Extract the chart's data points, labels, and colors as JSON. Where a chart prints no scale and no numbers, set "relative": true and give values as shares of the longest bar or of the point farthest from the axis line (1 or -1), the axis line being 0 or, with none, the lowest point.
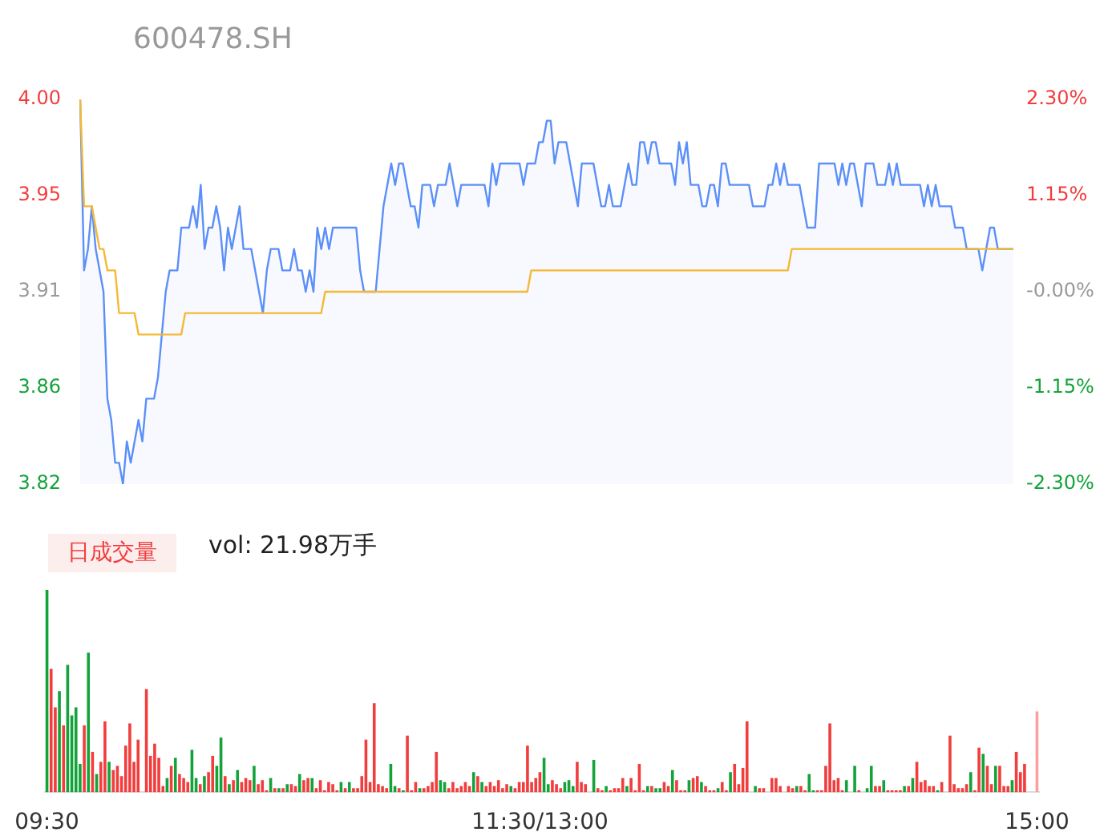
{
  "chart_data": [
    {
      "type": "area",
      "title": "600478.SH",
      "categories": [
        null,
        null,
        null,
        null,
        null,
        null,
        null,
        null,
        null,
        null,
        null,
        null,
        null,
        null,
        null,
        null,
        null,
        null,
        null,
        null,
        null,
        null,
        null,
        null,
        null,
        null,
        null,
        null,
        null,
        null,
        null,
        null,
        null,
        null,
        null,
        null,
        null,
        null,
        null,
        null,
        null,
        null,
        null,
        null,
        null,
        null,
        null,
        null,
        null,
        null,
        null,
        null,
        null,
        null,
        null,
        null,
        null,
        null,
        null,
        null,
        null,
        null,
        null,
        null,
        null,
        null,
        null,
        null,
        null,
        null,
        null,
        null,
        null,
        null,
        null,
        null,
        null,
        null,
        null,
        null,
        null,
        null,
        null,
        null,
        null,
        null,
        null,
        null,
        null,
        null,
        null,
        null,
        null,
        null,
        null,
        null,
        null,
        null,
        null,
        null,
        null,
        null,
        null,
        null,
        null,
        null,
        null,
        null,
        null,
        null,
        null,
        null,
        null,
        null,
        null,
        null,
        null,
        null,
        null,
        null,
        null,
        null,
        null,
        null,
        null,
        null,
        null,
        null,
        null,
        null,
        null,
        null,
        null,
        null,
        null,
        null,
        null,
        null,
        null,
        null,
        null,
        null,
        null,
        null,
        null,
        null,
        null,
        null,
        null,
        null,
        null,
        null,
        null,
        null,
        null,
        null,
        null,
        null,
        null,
        null,
        null,
        null,
        null,
        null,
        null,
        null,
        null,
        null,
        null,
        null,
        null,
        null,
        null,
        null,
        null,
        null,
        null,
        null,
        null,
        null,
        null,
        null,
        null,
        null,
        null,
        null,
        null,
        null,
        null,
        null,
        null,
        null,
        null,
        null,
        null,
        null,
        null,
        null,
        null,
        null,
        null,
        null,
        null,
        null,
        null,
        null,
        null,
        null,
        null,
        null,
        null,
        null,
        null,
        null,
        null,
        null,
        null,
        null,
        null,
        null,
        null,
        null,
        null,
        null,
        null,
        null,
        null,
        null,
        null,
        null,
        null,
        null,
        null,
        null,
        null,
        null,
        null,
        null,
        null,
        null,
        null
      ],
      "ylim": [
        3.82,
        4.0
      ],
      "yticks": [
        {
          "value": 4.0,
          "label": "4.00"
        },
        {
          "value": 3.955,
          "label": "3.95"
        },
        {
          "value": 3.91,
          "label": "3.91"
        },
        {
          "value": 3.865,
          "label": "3.86"
        },
        {
          "value": 3.82,
          "label": "3.82"
        }
      ],
      "y2lim": [
        -2.3,
        2.3
      ],
      "y2ticks": [
        {
          "value": 2.3,
          "label": "2.30%"
        },
        {
          "value": 1.15,
          "label": "1.15%"
        },
        {
          "value": 0,
          "label": "-0.00%"
        },
        {
          "value": -1.15,
          "label": "-1.15%"
        },
        {
          "value": -2.3,
          "label": "-2.30%"
        }
      ],
      "tick_labels": "y",
      "series": [
        {
          "type": "area",
          "color": "#5b8ff9",
          "values": [
            4.0,
            3.92,
            3.93,
            3.95,
            3.93,
            3.92,
            3.91,
            3.86,
            3.85,
            3.83,
            3.83,
            3.82,
            3.84,
            3.83,
            3.84,
            3.85,
            3.84,
            3.86,
            3.86,
            3.86,
            3.87,
            3.89,
            3.91,
            3.92,
            3.92,
            3.92,
            3.94,
            3.94,
            3.94,
            3.95,
            3.94,
            3.96,
            3.93,
            3.94,
            3.94,
            3.95,
            3.94,
            3.92,
            3.94,
            3.93,
            3.94,
            3.95,
            3.93,
            3.93,
            3.93,
            3.92,
            3.91,
            3.9,
            3.92,
            3.93,
            3.93,
            3.93,
            3.92,
            3.92,
            3.92,
            3.93,
            3.92,
            3.92,
            3.91,
            3.92,
            3.91,
            3.94,
            3.93,
            3.94,
            3.93,
            3.94,
            3.94,
            3.94,
            3.94,
            3.94,
            3.94,
            3.94,
            3.92,
            3.91,
            3.91,
            3.91,
            3.91,
            3.93,
            3.95,
            3.96,
            3.97,
            3.96,
            3.97,
            3.97,
            3.96,
            3.95,
            3.95,
            3.94,
            3.96,
            3.96,
            3.96,
            3.95,
            3.96,
            3.96,
            3.96,
            3.97,
            3.96,
            3.95,
            3.96,
            3.96,
            3.96,
            3.96,
            3.96,
            3.96,
            3.96,
            3.95,
            3.97,
            3.96,
            3.97,
            3.97,
            3.97,
            3.97,
            3.97,
            3.97,
            3.96,
            3.97,
            3.97,
            3.97,
            3.98,
            3.98,
            3.99,
            3.99,
            3.97,
            3.98,
            3.98,
            3.98,
            3.97,
            3.96,
            3.95,
            3.97,
            3.97,
            3.97,
            3.97,
            3.96,
            3.95,
            3.95,
            3.96,
            3.95,
            3.95,
            3.95,
            3.96,
            3.97,
            3.96,
            3.96,
            3.98,
            3.98,
            3.97,
            3.98,
            3.98,
            3.97,
            3.97,
            3.97,
            3.97,
            3.96,
            3.98,
            3.97,
            3.98,
            3.96,
            3.96,
            3.96,
            3.95,
            3.95,
            3.96,
            3.96,
            3.95,
            3.97,
            3.97,
            3.96,
            3.96,
            3.96,
            3.96,
            3.96,
            3.96,
            3.95,
            3.95,
            3.95,
            3.95,
            3.96,
            3.96,
            3.97,
            3.96,
            3.97,
            3.96,
            3.96,
            3.96,
            3.96,
            3.95,
            3.94,
            3.94,
            3.94,
            3.97,
            3.97,
            3.97,
            3.97,
            3.97,
            3.96,
            3.97,
            3.96,
            3.97,
            3.97,
            3.96,
            3.95,
            3.97,
            3.97,
            3.97,
            3.96,
            3.96,
            3.96,
            3.97,
            3.96,
            3.97,
            3.96,
            3.96,
            3.96,
            3.96,
            3.96,
            3.96,
            3.95,
            3.96,
            3.95,
            3.96,
            3.95,
            3.95,
            3.95,
            3.95,
            3.94,
            3.94,
            3.94,
            3.93,
            3.93,
            3.93,
            3.93,
            3.92,
            3.93,
            3.94,
            3.94,
            3.93,
            3.93,
            3.93,
            3.93,
            3.93
          ]
        },
        {
          "type": "line",
          "color": "#f5b935",
          "values": [
            4.0,
            3.95,
            3.95,
            3.95,
            3.94,
            3.93,
            3.93,
            3.92,
            3.92,
            3.92,
            3.9,
            3.9,
            3.9,
            3.9,
            3.9,
            3.89,
            3.89,
            3.89,
            3.89,
            3.89,
            3.89,
            3.89,
            3.89,
            3.89,
            3.89,
            3.89,
            3.89,
            3.9,
            3.9,
            3.9,
            3.9,
            3.9,
            3.9,
            3.9,
            3.9,
            3.9,
            3.9,
            3.9,
            3.9,
            3.9,
            3.9,
            3.9,
            3.9,
            3.9,
            3.9,
            3.9,
            3.9,
            3.9,
            3.9,
            3.9,
            3.9,
            3.9,
            3.9,
            3.9,
            3.9,
            3.9,
            3.9,
            3.9,
            3.9,
            3.9,
            3.9,
            3.9,
            3.9,
            3.91,
            3.91,
            3.91,
            3.91,
            3.91,
            3.91,
            3.91,
            3.91,
            3.91,
            3.91,
            3.91,
            3.91,
            3.91,
            3.91,
            3.91,
            3.91,
            3.91,
            3.91,
            3.91,
            3.91,
            3.91,
            3.91,
            3.91,
            3.91,
            3.91,
            3.91,
            3.91,
            3.91,
            3.91,
            3.91,
            3.91,
            3.91,
            3.91,
            3.91,
            3.91,
            3.91,
            3.91,
            3.91,
            3.91,
            3.91,
            3.91,
            3.91,
            3.91,
            3.91,
            3.91,
            3.91,
            3.91,
            3.91,
            3.91,
            3.91,
            3.91,
            3.91,
            3.91,
            3.92,
            3.92,
            3.92,
            3.92,
            3.92,
            3.92,
            3.92,
            3.92,
            3.92,
            3.92,
            3.92,
            3.92,
            3.92,
            3.92,
            3.92,
            3.92,
            3.92,
            3.92,
            3.92,
            3.92,
            3.92,
            3.92,
            3.92,
            3.92,
            3.92,
            3.92,
            3.92,
            3.92,
            3.92,
            3.92,
            3.92,
            3.92,
            3.92,
            3.92,
            3.92,
            3.92,
            3.92,
            3.92,
            3.92,
            3.92,
            3.92,
            3.92,
            3.92,
            3.92,
            3.92,
            3.92,
            3.92,
            3.92,
            3.92,
            3.92,
            3.92,
            3.92,
            3.92,
            3.92,
            3.92,
            3.92,
            3.92,
            3.92,
            3.92,
            3.92,
            3.92,
            3.92,
            3.92,
            3.92,
            3.92,
            3.92,
            3.92,
            3.93,
            3.93,
            3.93,
            3.93,
            3.93,
            3.93,
            3.93,
            3.93,
            3.93,
            3.93,
            3.93,
            3.93,
            3.93,
            3.93,
            3.93,
            3.93,
            3.93,
            3.93,
            3.93,
            3.93,
            3.93,
            3.93,
            3.93,
            3.93,
            3.93,
            3.93,
            3.93,
            3.93,
            3.93,
            3.93,
            3.93,
            3.93,
            3.93,
            3.93,
            3.93,
            3.93,
            3.93,
            3.93,
            3.93,
            3.93,
            3.93,
            3.93,
            3.93,
            3.93,
            3.93,
            3.93,
            3.93,
            3.93,
            3.93,
            3.93,
            3.93,
            3.93,
            3.93,
            3.93,
            3.93,
            3.93,
            3.93,
            3.93
          ]
        }
      ]
    },
    {
      "type": "bar",
      "relative": true,
      "annotations": [
        "日成交量",
        "vol: 21.98万手"
      ],
      "categories": [
        "09:30",
        null,
        null,
        null,
        null,
        null,
        null,
        null,
        null,
        null,
        null,
        null,
        null,
        null,
        null,
        null,
        null,
        null,
        null,
        null,
        null,
        null,
        null,
        null,
        null,
        null,
        null,
        null,
        null,
        null,
        null,
        null,
        null,
        null,
        null,
        null,
        null,
        null,
        null,
        null,
        null,
        null,
        null,
        null,
        null,
        null,
        null,
        null,
        null,
        null,
        null,
        null,
        null,
        null,
        null,
        null,
        null,
        null,
        null,
        null,
        null,
        null,
        null,
        null,
        null,
        null,
        null,
        null,
        null,
        null,
        null,
        null,
        null,
        null,
        null,
        null,
        null,
        null,
        null,
        null,
        null,
        null,
        null,
        null,
        null,
        null,
        null,
        null,
        null,
        null,
        null,
        null,
        null,
        null,
        null,
        null,
        null,
        null,
        null,
        null,
        null,
        null,
        null,
        null,
        null,
        null,
        null,
        null,
        null,
        null,
        null,
        null,
        null,
        null,
        null,
        null,
        null,
        null,
        null,
        "11:30/13:00",
        null,
        null,
        null,
        null,
        null,
        null,
        null,
        null,
        null,
        null,
        null,
        null,
        null,
        null,
        null,
        null,
        null,
        null,
        null,
        null,
        null,
        null,
        null,
        null,
        null,
        null,
        null,
        null,
        null,
        null,
        null,
        null,
        null,
        null,
        null,
        null,
        null,
        null,
        null,
        null,
        null,
        null,
        null,
        null,
        null,
        null,
        null,
        null,
        null,
        null,
        null,
        null,
        null,
        null,
        null,
        null,
        null,
        null,
        null,
        null,
        null,
        null,
        null,
        null,
        null,
        null,
        null,
        null,
        null,
        null,
        null,
        null,
        null,
        null,
        null,
        null,
        null,
        null,
        null,
        null,
        null,
        null,
        null,
        null,
        null,
        null,
        null,
        null,
        null,
        null,
        null,
        null,
        null,
        null,
        null,
        null,
        null,
        null,
        null,
        null,
        null,
        null,
        null,
        null,
        null,
        null,
        null,
        null,
        null,
        null,
        null,
        null,
        null,
        null,
        null,
        null,
        null,
        null,
        null,
        "15:00"
      ],
      "values": [
        1,
        0.61,
        0.42,
        0.5,
        0.33,
        0.63,
        0.38,
        0.42,
        0.14,
        0.33,
        0.69,
        0.2,
        0.09,
        0.15,
        0.35,
        0.15,
        0.11,
        0.13,
        0.08,
        0.23,
        0.34,
        0.15,
        0.26,
        0,
        0.51,
        0.18,
        0.24,
        0.17,
        0.03,
        0.07,
        0.13,
        0.17,
        0.09,
        0.07,
        0.05,
        0.21,
        0.07,
        0.04,
        0.08,
        0.1,
        0.18,
        0.13,
        0.27,
        0.08,
        0.04,
        0.06,
        0.11,
        0.05,
        0.07,
        0.06,
        0.13,
        0.04,
        0.06,
        0.01,
        0.07,
        0.02,
        0.02,
        0.02,
        0.04,
        0.04,
        0.03,
        0.09,
        0.06,
        0.07,
        0.07,
        0.02,
        0.06,
        0.01,
        0.05,
        0.04,
        0.01,
        0.05,
        0.02,
        0.05,
        0.02,
        0.02,
        0.08,
        0.26,
        0.05,
        0.44,
        0.04,
        0.03,
        0.02,
        0.14,
        0.03,
        0.02,
        0.01,
        0.28,
        0.01,
        0.05,
        0.02,
        0.02,
        0.03,
        0.05,
        0.2,
        0.06,
        0.05,
        0.02,
        0.05,
        0.02,
        0.03,
        0.05,
        0.03,
        0.1,
        0.08,
        0.05,
        0.03,
        0.05,
        0.03,
        0.06,
        0.02,
        0.04,
        0.03,
        0.02,
        0.05,
        0.05,
        0.23,
        0.05,
        0.07,
        0.1,
        0.17,
        0.04,
        0.06,
        0.04,
        0.02,
        0.05,
        0.06,
        0.03,
        0.15,
        0.05,
        0.04,
        0,
        0.16,
        0.02,
        0.01,
        0.03,
        0.01,
        0.02,
        0.02,
        0.07,
        0.03,
        0.07,
        0.01,
        0.14,
        0.01,
        0.03,
        0.03,
        0.02,
        0.02,
        0.05,
        0.03,
        0.11,
        0.06,
        0.01,
        0.01,
        0.06,
        0.07,
        0.08,
        0.05,
        0.03,
        0.01,
        0.01,
        0.02,
        0.05,
        0.01,
        0.1,
        0.14,
        0.04,
        0.12,
        0.35,
        0,
        0.03,
        0.02,
        0.02,
        0,
        0.07,
        0.07,
        0.03,
        0,
        0.03,
        0.02,
        0.03,
        0.03,
        0.01,
        0.09,
        0.01,
        0.01,
        0.01,
        0.13,
        0.34,
        0.06,
        0.07,
        0.01,
        0.06,
        0,
        0.13,
        0.01,
        0,
        0.02,
        0.13,
        0.03,
        0.03,
        0.06,
        0.01,
        0.01,
        0.01,
        0.01,
        0.03,
        0.03,
        0.07,
        0.15,
        0.05,
        0.06,
        0.03,
        0.03,
        0.01,
        0.05,
        0,
        0.28,
        0.04,
        0.02,
        0.02,
        0.04,
        0.1,
        0.01,
        0.22,
        0.19,
        0.13,
        0.04,
        0.13,
        0.13,
        0.03,
        0.03,
        0.06,
        0.2,
        0.1,
        0.14,
        0,
        0,
        0.4
      ],
      "colors": [
        "#14a33a",
        "#f23d3d",
        "#f23d3d",
        "#14a33a",
        "#f23d3d",
        "#14a33a",
        "#14a33a",
        "#14a33a",
        "#14a33a",
        "#f23d3d",
        "#14a33a",
        "#f23d3d",
        "#14a33a",
        "#f23d3d",
        "#f23d3d",
        "#14a33a",
        "#f23d3d",
        "#f23d3d",
        "#f23d3d",
        "#f23d3d",
        "#f23d3d",
        "#f23d3d",
        "#f23d3d",
        "#f23d3d",
        "#f23d3d",
        "#f23d3d",
        "#f23d3d",
        "#f23d3d",
        "#f23d3d",
        "#14a33a",
        "#f23d3d",
        "#14a33a",
        "#f23d3d",
        "#f23d3d",
        "#f23d3d",
        "#14a33a",
        "#14a33a",
        "#f23d3d",
        "#14a33a",
        "#f23d3d",
        "#f23d3d",
        "#14a33a",
        "#14a33a",
        "#f23d3d",
        "#14a33a",
        "#f23d3d",
        "#14a33a",
        "#f23d3d",
        "#f23d3d",
        "#f23d3d",
        "#14a33a",
        "#f23d3d",
        "#f23d3d",
        "#f23d3d",
        "#14a33a",
        "#f23d3d",
        "#14a33a",
        "#f23d3d",
        "#14a33a",
        "#f23d3d",
        "#f23d3d",
        "#14a33a",
        "#f23d3d",
        "#f23d3d",
        "#14a33a",
        "#f23d3d",
        "#f23d3d",
        "#f23d3d",
        "#f23d3d",
        "#f23d3d",
        "#f23d3d",
        "#14a33a",
        "#f23d3d",
        "#14a33a",
        "#f23d3d",
        "#f23d3d",
        "#f23d3d",
        "#f23d3d",
        "#f23d3d",
        "#f23d3d",
        "#f23d3d",
        "#f23d3d",
        "#f23d3d",
        "#14a33a",
        "#14a33a",
        "#f23d3d",
        "#14a33a",
        "#f23d3d",
        "#f23d3d",
        "#f23d3d",
        "#14a33a",
        "#f23d3d",
        "#f23d3d",
        "#f23d3d",
        "#f23d3d",
        "#14a33a",
        "#14a33a",
        "#f23d3d",
        "#f23d3d",
        "#f23d3d",
        "#f23d3d",
        "#f23d3d",
        "#f23d3d",
        "#14a33a",
        "#f23d3d",
        "#14a33a",
        "#f23d3d",
        "#f23d3d",
        "#f23d3d",
        "#f23d3d",
        "#f23d3d",
        "#f23d3d",
        "#14a33a",
        "#f23d3d",
        "#f23d3d",
        "#f23d3d",
        "#f23d3d",
        "#f23d3d",
        "#f23d3d",
        "#f23d3d",
        "#14a33a",
        "#14a33a",
        "#f23d3d",
        "#f23d3d",
        "#f23d3d",
        "#14a33a",
        "#14a33a",
        "#14a33a",
        "#f23d3d",
        "#f23d3d",
        "#f23d3d",
        "#f23d3d",
        "#14a33a",
        "#f23d3d",
        "#f23d3d",
        "#14a33a",
        "#f23d3d",
        "#f23d3d",
        "#f23d3d",
        "#f23d3d",
        "#14a33a",
        "#f23d3d",
        "#f23d3d",
        "#f23d3d",
        "#f23d3d",
        "#14a33a",
        "#f23d3d",
        "#14a33a",
        "#14a33a",
        "#f23d3d",
        "#f23d3d",
        "#14a33a",
        "#f23d3d",
        "#f23d3d",
        "#f23d3d",
        "#14a33a",
        "#f23d3d",
        "#f23d3d",
        "#14a33a",
        "#f23d3d",
        "#f23d3d",
        "#f23d3d",
        "#14a33a",
        "#f23d3d",
        "#f23d3d",
        "#14a33a",
        "#f23d3d",
        "#f23d3d",
        "#f23d3d",
        "#f23d3d",
        "#f23d3d",
        "#14a33a",
        "#f23d3d",
        "#f23d3d",
        "#f23d3d",
        "#f23d3d",
        "#f23d3d",
        "#f23d3d",
        "#f23d3d",
        "#f23d3d",
        "#f23d3d",
        "#14a33a",
        "#f23d3d",
        "#f23d3d",
        "#14a33a",
        "#14a33a",
        "#f23d3d",
        "#f23d3d",
        "#f23d3d",
        "#f23d3d",
        "#f23d3d",
        "#f23d3d",
        "#f23d3d",
        "#14a33a",
        "#f23d3d",
        "#14a33a",
        "#f23d3d",
        "#f23d3d",
        "#14a33a",
        "#14a33a",
        "#f23d3d",
        "#f23d3d",
        "#14a33a",
        "#f23d3d",
        "#f23d3d",
        "#f23d3d",
        "#f23d3d",
        "#14a33a",
        "#f23d3d",
        "#14a33a",
        "#f23d3d",
        "#f23d3d",
        "#f23d3d",
        "#f23d3d",
        "#f23d3d",
        "#14a33a",
        "#f23d3d",
        "#f23d3d",
        "#f23d3d",
        "#f23d3d",
        "#f23d3d",
        "#f23d3d",
        "#f23d3d",
        "#14a33a",
        "#f23d3d",
        "#f23d3d",
        "#14a33a",
        "#f23d3d",
        "#f23d3d",
        "#14a33a",
        "#f23d3d",
        "#f23d3d",
        "#f23d3d",
        "#14a33a",
        "#f23d3d",
        "#f23d3d",
        "#f23d3d",
        "#f23d3d",
        "#f23d3d",
        "#f9a0a0"
      ]
    }
  ]
}
